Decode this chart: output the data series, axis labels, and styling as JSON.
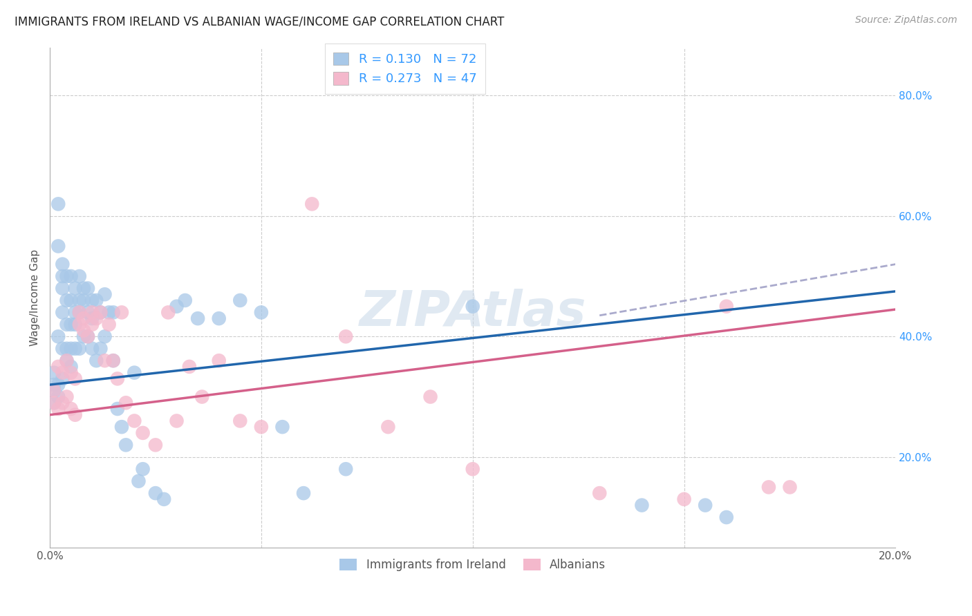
{
  "title": "IMMIGRANTS FROM IRELAND VS ALBANIAN WAGE/INCOME GAP CORRELATION CHART",
  "source": "Source: ZipAtlas.com",
  "ylabel": "Wage/Income Gap",
  "y_ticks": [
    0.2,
    0.4,
    0.6,
    0.8
  ],
  "y_tick_labels": [
    "20.0%",
    "40.0%",
    "60.0%",
    "80.0%"
  ],
  "xlim": [
    0.0,
    0.2
  ],
  "ylim": [
    0.05,
    0.88
  ],
  "legend1_label": "R = 0.130   N = 72",
  "legend2_label": "R = 0.273   N = 47",
  "legend_bottom1": "Immigrants from Ireland",
  "legend_bottom2": "Albanians",
  "blue_color": "#a8c8e8",
  "pink_color": "#f4b8cc",
  "blue_line_color": "#2166ac",
  "pink_line_color": "#d4608a",
  "dashed_color": "#aaaacc",
  "title_fontsize": 12,
  "source_fontsize": 10,
  "axis_label_fontsize": 11,
  "tick_fontsize": 11,
  "background_color": "#ffffff",
  "blue_line_x0": 0.0,
  "blue_line_y0": 0.32,
  "blue_line_x1": 0.2,
  "blue_line_y1": 0.475,
  "pink_line_x0": 0.0,
  "pink_line_y0": 0.27,
  "pink_line_x1": 0.2,
  "pink_line_y1": 0.445,
  "dashed_line_x0": 0.13,
  "dashed_line_y0": 0.435,
  "dashed_line_x1": 0.2,
  "dashed_line_y1": 0.52,
  "blue_points_x": [
    0.001,
    0.001,
    0.001,
    0.001,
    0.002,
    0.002,
    0.002,
    0.002,
    0.002,
    0.003,
    0.003,
    0.003,
    0.003,
    0.003,
    0.003,
    0.004,
    0.004,
    0.004,
    0.004,
    0.004,
    0.005,
    0.005,
    0.005,
    0.005,
    0.005,
    0.006,
    0.006,
    0.006,
    0.006,
    0.007,
    0.007,
    0.007,
    0.007,
    0.008,
    0.008,
    0.008,
    0.009,
    0.009,
    0.009,
    0.01,
    0.01,
    0.01,
    0.011,
    0.011,
    0.012,
    0.012,
    0.013,
    0.013,
    0.014,
    0.015,
    0.015,
    0.016,
    0.017,
    0.018,
    0.02,
    0.021,
    0.022,
    0.025,
    0.027,
    0.03,
    0.032,
    0.035,
    0.04,
    0.045,
    0.05,
    0.055,
    0.06,
    0.07,
    0.1,
    0.14,
    0.155,
    0.16
  ],
  "blue_points_y": [
    0.32,
    0.34,
    0.31,
    0.29,
    0.55,
    0.62,
    0.4,
    0.32,
    0.3,
    0.52,
    0.5,
    0.48,
    0.44,
    0.38,
    0.33,
    0.5,
    0.46,
    0.42,
    0.38,
    0.36,
    0.5,
    0.46,
    0.42,
    0.38,
    0.35,
    0.48,
    0.44,
    0.42,
    0.38,
    0.5,
    0.46,
    0.44,
    0.38,
    0.48,
    0.46,
    0.4,
    0.48,
    0.44,
    0.4,
    0.46,
    0.43,
    0.38,
    0.46,
    0.36,
    0.44,
    0.38,
    0.47,
    0.4,
    0.44,
    0.44,
    0.36,
    0.28,
    0.25,
    0.22,
    0.34,
    0.16,
    0.18,
    0.14,
    0.13,
    0.45,
    0.46,
    0.43,
    0.43,
    0.46,
    0.44,
    0.25,
    0.14,
    0.18,
    0.45,
    0.12,
    0.12,
    0.1
  ],
  "pink_points_x": [
    0.001,
    0.001,
    0.002,
    0.002,
    0.003,
    0.003,
    0.004,
    0.004,
    0.005,
    0.005,
    0.006,
    0.006,
    0.007,
    0.007,
    0.008,
    0.008,
    0.009,
    0.01,
    0.01,
    0.011,
    0.012,
    0.013,
    0.014,
    0.015,
    0.016,
    0.017,
    0.018,
    0.02,
    0.022,
    0.025,
    0.028,
    0.03,
    0.033,
    0.036,
    0.04,
    0.045,
    0.05,
    0.062,
    0.07,
    0.08,
    0.09,
    0.1,
    0.13,
    0.15,
    0.16,
    0.17,
    0.175
  ],
  "pink_points_y": [
    0.31,
    0.29,
    0.35,
    0.28,
    0.34,
    0.29,
    0.36,
    0.3,
    0.34,
    0.28,
    0.33,
    0.27,
    0.44,
    0.42,
    0.43,
    0.41,
    0.4,
    0.44,
    0.42,
    0.43,
    0.44,
    0.36,
    0.42,
    0.36,
    0.33,
    0.44,
    0.29,
    0.26,
    0.24,
    0.22,
    0.44,
    0.26,
    0.35,
    0.3,
    0.36,
    0.26,
    0.25,
    0.62,
    0.4,
    0.25,
    0.3,
    0.18,
    0.14,
    0.13,
    0.45,
    0.15,
    0.15
  ]
}
